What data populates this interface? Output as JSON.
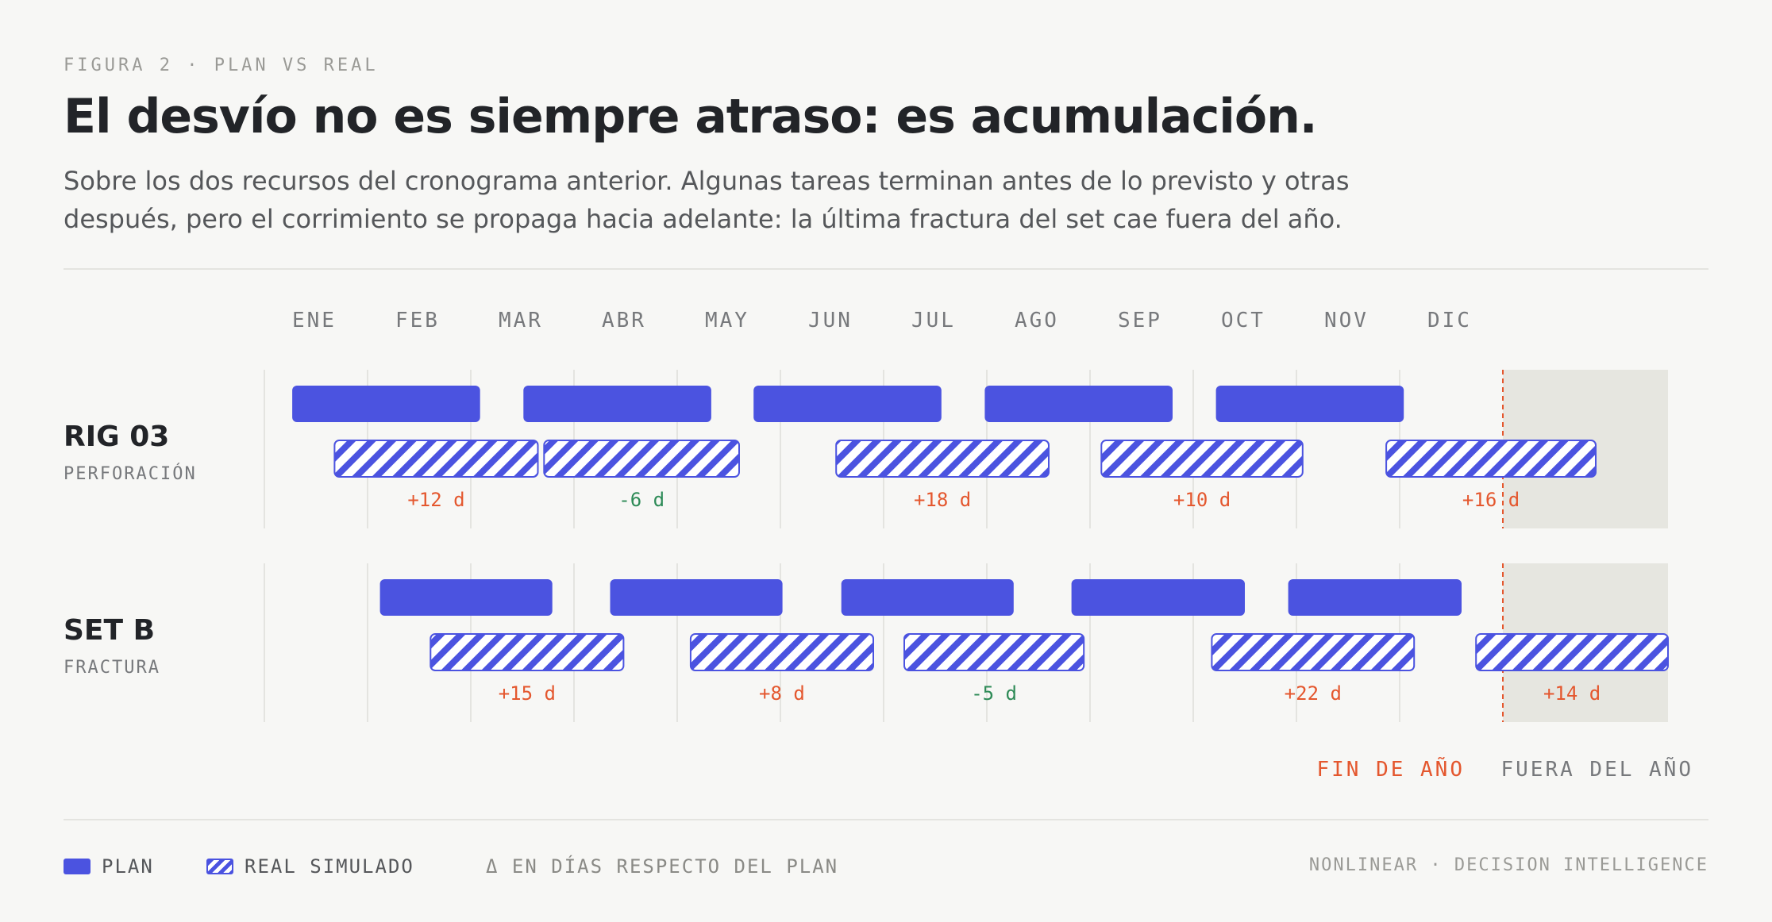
{
  "header": {
    "eyebrow": "FIGURA 2 · PLAN VS REAL",
    "title": "El desvío no es siempre atraso: es acumulación.",
    "subtitle": "Sobre los dos recursos del cronograma anterior. Algunas tareas terminan antes de lo previsto y otras después, pero el corrimiento se propaga hacia adelante: la última fractura del set cae fuera del año."
  },
  "chart_data": {
    "type": "gantt",
    "months": [
      "ENE",
      "FEB",
      "MAR",
      "ABR",
      "MAY",
      "JUN",
      "JUL",
      "AGO",
      "SEP",
      "OCT",
      "NOV",
      "DIC"
    ],
    "x_units": "meses desde inicio de año",
    "xlim": [
      0,
      13.6
    ],
    "year_end": 12,
    "year_end_label": "FIN DE AÑO",
    "out_of_year_label": "FUERA DEL AÑO",
    "resources": [
      {
        "name": "RIG 03",
        "subtitle": "PERFORACIÓN",
        "plan": [
          [
            0.27,
            2.09
          ],
          [
            2.51,
            4.33
          ],
          [
            4.74,
            6.56
          ],
          [
            6.98,
            8.8
          ],
          [
            9.22,
            11.04
          ]
        ],
        "real": [
          [
            0.68,
            2.65
          ],
          [
            2.71,
            4.6
          ],
          [
            5.54,
            7.6
          ],
          [
            8.11,
            10.06
          ],
          [
            10.87,
            12.9
          ]
        ],
        "deltas": [
          "+12 d",
          "-6 d",
          "+18 d",
          "+10 d",
          "+16 d"
        ],
        "delta_sign": [
          "pos",
          "neg",
          "pos",
          "pos",
          "pos"
        ]
      },
      {
        "name": "SET B",
        "subtitle": "FRACTURA",
        "plan": [
          [
            1.12,
            2.79
          ],
          [
            3.35,
            5.02
          ],
          [
            5.59,
            7.26
          ],
          [
            7.82,
            9.5
          ],
          [
            9.92,
            11.6
          ]
        ],
        "real": [
          [
            1.61,
            3.48
          ],
          [
            4.13,
            5.9
          ],
          [
            6.2,
            7.94
          ],
          [
            9.18,
            11.14
          ],
          [
            11.74,
            13.6
          ]
        ],
        "deltas": [
          "+15 d",
          "+8 d",
          "-5 d",
          "+22 d",
          "+14 d"
        ],
        "delta_sign": [
          "pos",
          "pos",
          "neg",
          "pos",
          "pos"
        ]
      }
    ],
    "colors": {
      "plan": "#4b53e0",
      "positive": "#e4572e",
      "negative": "#2e8b57",
      "out_of_year_band": "#e6e6e0"
    }
  },
  "legend": {
    "plan": "PLAN",
    "real": "REAL SIMULADO",
    "delta_note": "Δ EN DÍAS RESPECTO DEL PLAN"
  },
  "brand": "NONLINEAR · DECISION INTELLIGENCE"
}
